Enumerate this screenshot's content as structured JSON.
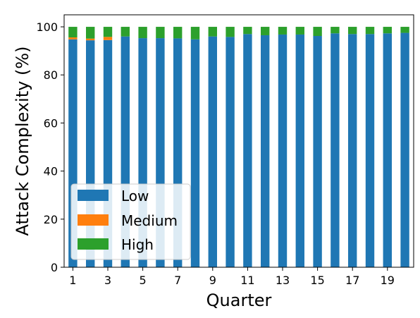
{
  "chart_data": {
    "type": "bar",
    "stacked": true,
    "xlabel": "Quarter",
    "ylabel": "Attack Complexity (%)",
    "ylim": [
      0,
      105
    ],
    "yticks": [
      0,
      20,
      40,
      60,
      80,
      100
    ],
    "categories": [
      "1",
      "2",
      "3",
      "4",
      "5",
      "6",
      "7",
      "8",
      "9",
      "10",
      "11",
      "12",
      "13",
      "14",
      "15",
      "16",
      "17",
      "18",
      "19",
      "20"
    ],
    "xtick_labels": [
      "1",
      "3",
      "5",
      "7",
      "9",
      "11",
      "13",
      "15",
      "17",
      "19"
    ],
    "series": [
      {
        "name": "Low",
        "color": "#1f77b4",
        "values": [
          94.8,
          94.4,
          94.5,
          96.0,
          95.3,
          95.3,
          95.2,
          94.8,
          96.0,
          95.8,
          97.0,
          96.5,
          96.8,
          96.8,
          96.2,
          97.3,
          97.0,
          97.0,
          97.3,
          97.5
        ]
      },
      {
        "name": "Medium",
        "color": "#ff7f0e",
        "values": [
          0.8,
          0.7,
          1.3,
          0,
          0,
          0,
          0,
          0,
          0,
          0,
          0,
          0,
          0,
          0,
          0,
          0,
          0,
          0,
          0,
          0
        ]
      },
      {
        "name": "High",
        "color": "#2ca02c",
        "values": [
          4.4,
          4.9,
          4.2,
          4.0,
          4.7,
          4.7,
          4.8,
          5.2,
          4.0,
          4.2,
          3.0,
          3.5,
          3.2,
          3.2,
          3.8,
          2.7,
          3.0,
          3.0,
          2.7,
          2.5
        ]
      }
    ],
    "legend_position": "lower-left",
    "grid": false
  }
}
